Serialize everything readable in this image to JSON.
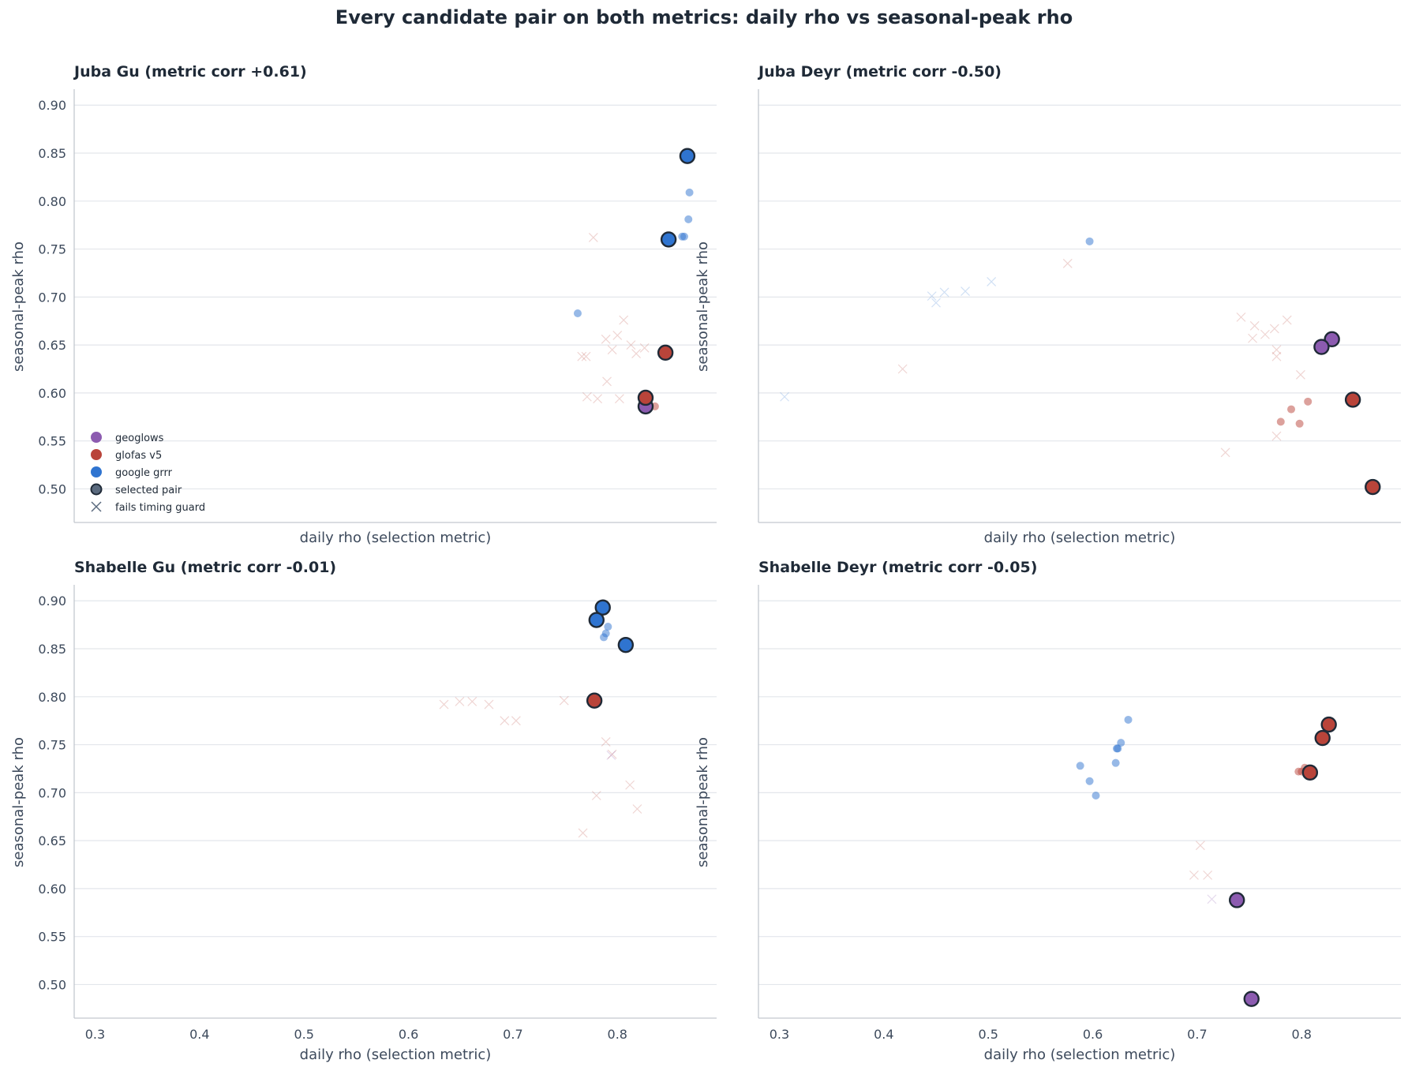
{
  "title": "Every candidate pair on both metrics: daily rho vs seasonal-peak rho",
  "colors": {
    "geoglows": "#8c5bb0",
    "glofas v5": "#b9443a",
    "google grrr": "#2f74d0",
    "edge": "#1f2a37",
    "grid": "#e3e6eb"
  },
  "legend": {
    "items": [
      {
        "label": "geoglows",
        "kind": "dot",
        "series": "geoglows"
      },
      {
        "label": "glofas v5",
        "kind": "dot",
        "series": "glofas v5"
      },
      {
        "label": "google grrr",
        "kind": "dot",
        "series": "google grrr"
      },
      {
        "label": "selected pair",
        "kind": "selected"
      },
      {
        "label": "fails timing guard",
        "kind": "cross"
      }
    ]
  },
  "chart_data": [
    {
      "type": "scatter",
      "title": "Juba Gu  (metric corr +0.61)",
      "xlabel": "daily rho (selection metric)",
      "ylabel": "seasonal-peak rho",
      "xlim": [
        0.28,
        0.895
      ],
      "ylim": [
        0.465,
        0.915
      ],
      "xticks": [],
      "yticks": [
        "0.50",
        "0.55",
        "0.60",
        "0.65",
        "0.70",
        "0.75",
        "0.80",
        "0.85",
        "0.90"
      ],
      "grid": "horizontal",
      "legend": "lower-left",
      "points": [
        {
          "x": 0.777,
          "y": 0.762,
          "series": "glofas v5",
          "mark": "cross"
        },
        {
          "x": 0.806,
          "y": 0.676,
          "series": "glofas v5",
          "mark": "cross"
        },
        {
          "x": 0.8,
          "y": 0.66,
          "series": "glofas v5",
          "mark": "cross"
        },
        {
          "x": 0.789,
          "y": 0.656,
          "series": "glofas v5",
          "mark": "cross"
        },
        {
          "x": 0.813,
          "y": 0.65,
          "series": "glofas v5",
          "mark": "cross"
        },
        {
          "x": 0.826,
          "y": 0.647,
          "series": "glofas v5",
          "mark": "cross"
        },
        {
          "x": 0.795,
          "y": 0.645,
          "series": "glofas v5",
          "mark": "cross"
        },
        {
          "x": 0.818,
          "y": 0.641,
          "series": "glofas v5",
          "mark": "cross"
        },
        {
          "x": 0.766,
          "y": 0.638,
          "series": "glofas v5",
          "mark": "cross"
        },
        {
          "x": 0.77,
          "y": 0.638,
          "series": "glofas v5",
          "mark": "cross"
        },
        {
          "x": 0.79,
          "y": 0.612,
          "series": "glofas v5",
          "mark": "cross"
        },
        {
          "x": 0.771,
          "y": 0.596,
          "series": "glofas v5",
          "mark": "cross"
        },
        {
          "x": 0.781,
          "y": 0.594,
          "series": "glofas v5",
          "mark": "cross"
        },
        {
          "x": 0.802,
          "y": 0.594,
          "series": "glofas v5",
          "mark": "cross"
        },
        {
          "x": 0.762,
          "y": 0.683,
          "series": "google grrr",
          "mark": "dot"
        },
        {
          "x": 0.869,
          "y": 0.809,
          "series": "google grrr",
          "mark": "dot"
        },
        {
          "x": 0.868,
          "y": 0.781,
          "series": "google grrr",
          "mark": "dot"
        },
        {
          "x": 0.862,
          "y": 0.763,
          "series": "google grrr",
          "mark": "dot"
        },
        {
          "x": 0.864,
          "y": 0.763,
          "series": "google grrr",
          "mark": "dot"
        },
        {
          "x": 0.836,
          "y": 0.586,
          "series": "glofas v5",
          "mark": "dot"
        },
        {
          "x": 0.827,
          "y": 0.586,
          "series": "geoglows",
          "mark": "selected"
        },
        {
          "x": 0.827,
          "y": 0.595,
          "series": "glofas v5",
          "mark": "selected"
        },
        {
          "x": 0.846,
          "y": 0.642,
          "series": "glofas v5",
          "mark": "selected"
        },
        {
          "x": 0.849,
          "y": 0.76,
          "series": "google grrr",
          "mark": "selected"
        },
        {
          "x": 0.867,
          "y": 0.847,
          "series": "google grrr",
          "mark": "selected"
        }
      ]
    },
    {
      "type": "scatter",
      "title": "Juba Deyr  (metric corr -0.50)",
      "xlabel": "daily rho (selection metric)",
      "ylabel": "seasonal-peak rho",
      "xlim": [
        0.28,
        0.895
      ],
      "ylim": [
        0.465,
        0.915
      ],
      "xticks": [],
      "yticks": [],
      "grid": "horizontal",
      "points": [
        {
          "x": 0.305,
          "y": 0.596,
          "series": "google grrr",
          "mark": "cross"
        },
        {
          "x": 0.418,
          "y": 0.625,
          "series": "glofas v5",
          "mark": "cross"
        },
        {
          "x": 0.446,
          "y": 0.701,
          "series": "google grrr",
          "mark": "cross"
        },
        {
          "x": 0.45,
          "y": 0.694,
          "series": "google grrr",
          "mark": "cross"
        },
        {
          "x": 0.458,
          "y": 0.705,
          "series": "google grrr",
          "mark": "cross"
        },
        {
          "x": 0.478,
          "y": 0.706,
          "series": "google grrr",
          "mark": "cross"
        },
        {
          "x": 0.503,
          "y": 0.716,
          "series": "google grrr",
          "mark": "cross"
        },
        {
          "x": 0.576,
          "y": 0.735,
          "series": "glofas v5",
          "mark": "cross"
        },
        {
          "x": 0.742,
          "y": 0.679,
          "series": "glofas v5",
          "mark": "cross"
        },
        {
          "x": 0.755,
          "y": 0.67,
          "series": "glofas v5",
          "mark": "cross"
        },
        {
          "x": 0.765,
          "y": 0.661,
          "series": "glofas v5",
          "mark": "cross"
        },
        {
          "x": 0.753,
          "y": 0.657,
          "series": "glofas v5",
          "mark": "cross"
        },
        {
          "x": 0.774,
          "y": 0.667,
          "series": "glofas v5",
          "mark": "cross"
        },
        {
          "x": 0.786,
          "y": 0.676,
          "series": "glofas v5",
          "mark": "cross"
        },
        {
          "x": 0.776,
          "y": 0.645,
          "series": "glofas v5",
          "mark": "cross"
        },
        {
          "x": 0.776,
          "y": 0.638,
          "series": "glofas v5",
          "mark": "cross"
        },
        {
          "x": 0.799,
          "y": 0.619,
          "series": "glofas v5",
          "mark": "cross"
        },
        {
          "x": 0.776,
          "y": 0.555,
          "series": "glofas v5",
          "mark": "cross"
        },
        {
          "x": 0.727,
          "y": 0.538,
          "series": "glofas v5",
          "mark": "cross"
        },
        {
          "x": 0.597,
          "y": 0.758,
          "series": "google grrr",
          "mark": "dot"
        },
        {
          "x": 0.806,
          "y": 0.591,
          "series": "glofas v5",
          "mark": "dot"
        },
        {
          "x": 0.79,
          "y": 0.583,
          "series": "glofas v5",
          "mark": "dot"
        },
        {
          "x": 0.78,
          "y": 0.57,
          "series": "glofas v5",
          "mark": "dot"
        },
        {
          "x": 0.798,
          "y": 0.568,
          "series": "glofas v5",
          "mark": "dot"
        },
        {
          "x": 0.829,
          "y": 0.656,
          "series": "geoglows",
          "mark": "selected"
        },
        {
          "x": 0.819,
          "y": 0.648,
          "series": "geoglows",
          "mark": "selected"
        },
        {
          "x": 0.849,
          "y": 0.593,
          "series": "glofas v5",
          "mark": "selected"
        },
        {
          "x": 0.868,
          "y": 0.502,
          "series": "glofas v5",
          "mark": "selected"
        }
      ]
    },
    {
      "type": "scatter",
      "title": "Shabelle Gu  (metric corr -0.01)",
      "xlabel": "daily rho (selection metric)",
      "ylabel": "seasonal-peak rho",
      "xlim": [
        0.28,
        0.895
      ],
      "ylim": [
        0.465,
        0.915
      ],
      "xticks": [
        "0.3",
        "0.4",
        "0.5",
        "0.6",
        "0.7",
        "0.8"
      ],
      "yticks": [
        "0.50",
        "0.55",
        "0.60",
        "0.65",
        "0.70",
        "0.75",
        "0.80",
        "0.85",
        "0.90"
      ],
      "grid": "horizontal",
      "points": [
        {
          "x": 0.634,
          "y": 0.792,
          "series": "glofas v5",
          "mark": "cross"
        },
        {
          "x": 0.649,
          "y": 0.795,
          "series": "glofas v5",
          "mark": "cross"
        },
        {
          "x": 0.661,
          "y": 0.795,
          "series": "glofas v5",
          "mark": "cross"
        },
        {
          "x": 0.677,
          "y": 0.792,
          "series": "glofas v5",
          "mark": "cross"
        },
        {
          "x": 0.692,
          "y": 0.775,
          "series": "glofas v5",
          "mark": "cross"
        },
        {
          "x": 0.703,
          "y": 0.775,
          "series": "glofas v5",
          "mark": "cross"
        },
        {
          "x": 0.749,
          "y": 0.796,
          "series": "glofas v5",
          "mark": "cross"
        },
        {
          "x": 0.789,
          "y": 0.753,
          "series": "glofas v5",
          "mark": "cross"
        },
        {
          "x": 0.795,
          "y": 0.74,
          "series": "glofas v5",
          "mark": "cross"
        },
        {
          "x": 0.794,
          "y": 0.739,
          "series": "geoglows",
          "mark": "cross"
        },
        {
          "x": 0.812,
          "y": 0.708,
          "series": "glofas v5",
          "mark": "cross"
        },
        {
          "x": 0.78,
          "y": 0.697,
          "series": "glofas v5",
          "mark": "cross"
        },
        {
          "x": 0.819,
          "y": 0.683,
          "series": "glofas v5",
          "mark": "cross"
        },
        {
          "x": 0.767,
          "y": 0.658,
          "series": "glofas v5",
          "mark": "cross"
        },
        {
          "x": 0.791,
          "y": 0.873,
          "series": "google grrr",
          "mark": "dot"
        },
        {
          "x": 0.789,
          "y": 0.866,
          "series": "google grrr",
          "mark": "dot"
        },
        {
          "x": 0.787,
          "y": 0.862,
          "series": "google grrr",
          "mark": "dot"
        },
        {
          "x": 0.786,
          "y": 0.893,
          "series": "google grrr",
          "mark": "selected"
        },
        {
          "x": 0.78,
          "y": 0.88,
          "series": "google grrr",
          "mark": "selected"
        },
        {
          "x": 0.808,
          "y": 0.854,
          "series": "google grrr",
          "mark": "selected"
        },
        {
          "x": 0.778,
          "y": 0.796,
          "series": "glofas v5",
          "mark": "selected"
        }
      ]
    },
    {
      "type": "scatter",
      "title": "Shabelle Deyr  (metric corr -0.05)",
      "xlabel": "daily rho (selection metric)",
      "ylabel": "seasonal-peak rho",
      "xlim": [
        0.28,
        0.895
      ],
      "ylim": [
        0.465,
        0.915
      ],
      "xticks": [
        "0.3",
        "0.4",
        "0.5",
        "0.6",
        "0.7",
        "0.8"
      ],
      "yticks": [],
      "grid": "horizontal",
      "points": [
        {
          "x": 0.703,
          "y": 0.645,
          "series": "glofas v5",
          "mark": "cross"
        },
        {
          "x": 0.697,
          "y": 0.614,
          "series": "glofas v5",
          "mark": "cross"
        },
        {
          "x": 0.71,
          "y": 0.614,
          "series": "glofas v5",
          "mark": "cross"
        },
        {
          "x": 0.714,
          "y": 0.589,
          "series": "geoglows",
          "mark": "cross"
        },
        {
          "x": 0.634,
          "y": 0.776,
          "series": "google grrr",
          "mark": "dot"
        },
        {
          "x": 0.627,
          "y": 0.752,
          "series": "google grrr",
          "mark": "dot"
        },
        {
          "x": 0.624,
          "y": 0.746,
          "series": "google grrr",
          "mark": "dot"
        },
        {
          "x": 0.623,
          "y": 0.746,
          "series": "google grrr",
          "mark": "dot"
        },
        {
          "x": 0.622,
          "y": 0.731,
          "series": "google grrr",
          "mark": "dot"
        },
        {
          "x": 0.588,
          "y": 0.728,
          "series": "google grrr",
          "mark": "dot"
        },
        {
          "x": 0.597,
          "y": 0.712,
          "series": "google grrr",
          "mark": "dot"
        },
        {
          "x": 0.603,
          "y": 0.697,
          "series": "google grrr",
          "mark": "dot"
        },
        {
          "x": 0.797,
          "y": 0.722,
          "series": "glofas v5",
          "mark": "dot"
        },
        {
          "x": 0.8,
          "y": 0.722,
          "series": "glofas v5",
          "mark": "dot"
        },
        {
          "x": 0.803,
          "y": 0.726,
          "series": "glofas v5",
          "mark": "dot"
        },
        {
          "x": 0.806,
          "y": 0.724,
          "series": "glofas v5",
          "mark": "dot"
        },
        {
          "x": 0.81,
          "y": 0.724,
          "series": "glofas v5",
          "mark": "dot"
        },
        {
          "x": 0.826,
          "y": 0.771,
          "series": "glofas v5",
          "mark": "selected"
        },
        {
          "x": 0.82,
          "y": 0.757,
          "series": "glofas v5",
          "mark": "selected"
        },
        {
          "x": 0.808,
          "y": 0.721,
          "series": "glofas v5",
          "mark": "selected"
        },
        {
          "x": 0.738,
          "y": 0.588,
          "series": "geoglows",
          "mark": "selected"
        },
        {
          "x": 0.752,
          "y": 0.485,
          "series": "geoglows",
          "mark": "selected"
        }
      ]
    }
  ]
}
